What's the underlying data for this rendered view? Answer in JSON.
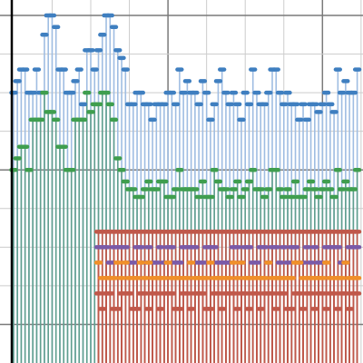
{
  "chart_data": {
    "type": "stem",
    "title": "",
    "xlabel": "",
    "ylabel": "",
    "grid": true,
    "legend": "none",
    "xlim": [
      -3.5,
      90.5
    ],
    "ylim": [
      -10,
      84
    ],
    "x_start": 0,
    "colors": {
      "blue": "#3f7fc0",
      "green": "#3f9e4e",
      "purple": "#7a5aa8",
      "orange": "#f0902a",
      "red": "#c0584a",
      "stem_blue": "#9fbde2",
      "stem_green": "#5f9f8e",
      "stem_red": "#c0584a"
    },
    "series": [
      {
        "color": "blue",
        "stem": "stem_blue",
        "values": [
          60,
          63,
          66,
          66,
          60,
          60,
          66,
          60,
          75,
          80,
          80,
          77,
          66,
          66,
          60,
          60,
          63,
          66,
          57,
          71,
          71,
          66,
          71,
          75,
          80,
          80,
          77,
          71,
          69,
          66,
          57,
          57,
          60,
          60,
          57,
          57,
          53,
          57,
          57,
          57,
          60,
          60,
          57,
          66,
          60,
          63,
          60,
          60,
          57,
          63,
          60,
          53,
          57,
          63,
          66,
          60,
          57,
          60,
          57,
          53,
          60,
          57,
          66,
          60,
          57,
          57,
          60,
          66,
          66,
          60,
          57,
          60,
          57,
          57,
          53,
          57,
          53,
          57,
          57,
          55,
          57,
          60,
          57,
          55,
          66,
          60,
          63,
          60,
          60,
          66
        ]
      },
      {
        "color": "green",
        "stem": "stem_green",
        "values": [
          40,
          43,
          46,
          46,
          40,
          53,
          53,
          53,
          60,
          55,
          55,
          53,
          46,
          46,
          40,
          40,
          53,
          53,
          53,
          60,
          55,
          57,
          57,
          60,
          60,
          57,
          53,
          43,
          40,
          37,
          35,
          35,
          33,
          33,
          35,
          37,
          35,
          35,
          37,
          37,
          33,
          33,
          35,
          40,
          35,
          35,
          35,
          35,
          33,
          37,
          33,
          33,
          40,
          37,
          35,
          35,
          33,
          35,
          37,
          33,
          35,
          37,
          40,
          35,
          35,
          33,
          35,
          40,
          40,
          35,
          33,
          35,
          33,
          37,
          33,
          33,
          35,
          37,
          35,
          33,
          35,
          37,
          35,
          33,
          40,
          35,
          37,
          35,
          35,
          40
        ]
      },
      {
        "color": "purple",
        "stem": "stem_red",
        "start": 22,
        "values": [
          20,
          20,
          20,
          16,
          20,
          20,
          20,
          20,
          16,
          16,
          20,
          20,
          16,
          20,
          16,
          16,
          20,
          16,
          20,
          20,
          16,
          16,
          20,
          20,
          20,
          20,
          16,
          16,
          20,
          20,
          20,
          16,
          16,
          16,
          16,
          20,
          20,
          16,
          20,
          20,
          16,
          16,
          20,
          20,
          16,
          20,
          20,
          16,
          20,
          16,
          20,
          20,
          16,
          16,
          20,
          16,
          20,
          16,
          16,
          20,
          20,
          20,
          20,
          16,
          16,
          20,
          20,
          20
        ]
      },
      {
        "color": "orange",
        "stem": "stem_red",
        "start": 22,
        "values": [
          16,
          12,
          12,
          12,
          12,
          16,
          12,
          16,
          12,
          12,
          12,
          16,
          12,
          16,
          12,
          12,
          12,
          12,
          16,
          12,
          12,
          12,
          12,
          12,
          16,
          12,
          12,
          12,
          12,
          16,
          12,
          12,
          12,
          12,
          12,
          16,
          12,
          16,
          12,
          12,
          12,
          12,
          12,
          12,
          16,
          12,
          12,
          12,
          12,
          12,
          12,
          16,
          16,
          12,
          12,
          12,
          12,
          12,
          12,
          16,
          12,
          12,
          12,
          12,
          16,
          12,
          12,
          12
        ]
      },
      {
        "color": "red",
        "stem": "stem_red",
        "start": 22,
        "values": [
          24,
          24,
          24,
          24,
          24,
          24,
          24,
          24,
          24,
          24,
          24,
          24,
          24,
          24,
          24,
          24,
          24,
          24,
          24,
          24,
          24,
          24,
          24,
          24,
          24,
          24,
          24,
          24,
          24,
          24,
          24,
          24,
          24,
          24,
          24,
          24,
          24,
          24,
          24,
          24,
          24,
          24,
          24,
          24,
          24,
          24,
          24,
          24,
          24,
          24,
          24,
          24,
          24,
          24,
          24,
          24,
          24,
          24,
          24,
          24,
          24,
          24,
          24,
          24,
          24,
          24,
          24,
          24
        ]
      },
      {
        "color": "red",
        "stem": "stem_red",
        "start": 22,
        "values": [
          8,
          4,
          8,
          8,
          4,
          4,
          8,
          8,
          8,
          4,
          4,
          8,
          8,
          4,
          8,
          8,
          4,
          8,
          8,
          8,
          4,
          4,
          8,
          8,
          4,
          8,
          8,
          8,
          4,
          4,
          8,
          8,
          4,
          8,
          8,
          8,
          4,
          8,
          8,
          4,
          8,
          8,
          4,
          8,
          8,
          8,
          4,
          8,
          8,
          4,
          4,
          8,
          8,
          4,
          8,
          8,
          4,
          8,
          8,
          4,
          8,
          8,
          4,
          8,
          8,
          4,
          8,
          8
        ]
      }
    ]
  }
}
